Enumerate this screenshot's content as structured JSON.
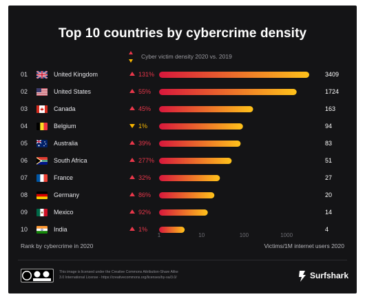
{
  "title": "Top 10 countries by cybercrime density",
  "legend_label": "Cyber victim density 2020 vs. 2019",
  "footer": {
    "left": "Rank by cybercrime in 2020",
    "right": "Victims/1M internet users 2020",
    "license_line1": "This image is licensed under the Creative Commons Attribution-Share Alike",
    "license_line2": "3.0 International License - https://creativecommons.org/licenses/by-sa/3.0/",
    "brand": "Surfshark"
  },
  "colors": {
    "up": "#e8374a",
    "down": "#f7b500",
    "bar_start": "#d8173c",
    "bar_end": "#ffc21a"
  },
  "chart_data": {
    "type": "bar",
    "orientation": "horizontal",
    "x_scale": "log",
    "xlim": [
      1,
      3409
    ],
    "x_ticks": [
      "1",
      "10",
      "100",
      "1000"
    ],
    "xlabel": "Victims/1M internet users 2020",
    "categories": [
      "United Kingdom",
      "United States",
      "Canada",
      "Belgium",
      "Australia",
      "South Africa",
      "France",
      "Germany",
      "Mexico",
      "India"
    ],
    "ranks": [
      "01",
      "02",
      "03",
      "04",
      "05",
      "06",
      "07",
      "08",
      "09",
      "10"
    ],
    "values": [
      3409,
      1724,
      163,
      94,
      83,
      51,
      27,
      20,
      14,
      4
    ],
    "value_labels": [
      "3409",
      "1724",
      "163",
      "94",
      "83",
      "51",
      "27",
      "20",
      "14",
      "4"
    ],
    "change_labels": [
      "131%",
      "55%",
      "45%",
      "1%",
      "39%",
      "277%",
      "32%",
      "86%",
      "92%",
      "1%"
    ],
    "change_direction": [
      "up",
      "up",
      "up",
      "down",
      "up",
      "up",
      "up",
      "up",
      "up",
      "up"
    ],
    "flags": [
      "gb-flag",
      "us-flag",
      "ca-flag",
      "be-flag",
      "au-flag",
      "za-flag",
      "fr-flag",
      "de-flag",
      "mx-flag",
      "in-flag"
    ]
  }
}
